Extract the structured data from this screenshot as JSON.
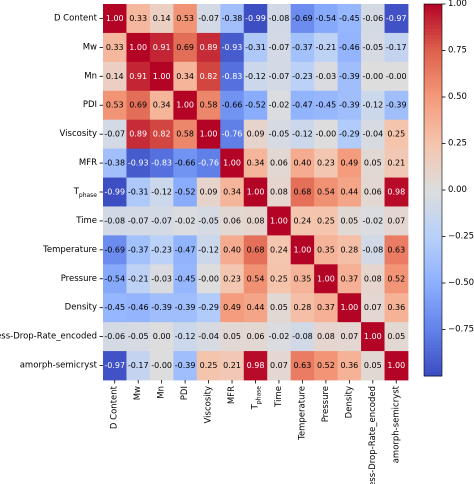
{
  "chart_data": {
    "type": "heatmap",
    "colormap": "coolwarm",
    "vmin": -1.0,
    "vmax": 1.0,
    "labels": [
      {
        "base": "D Content"
      },
      {
        "base": "Mw"
      },
      {
        "base": "Mn"
      },
      {
        "base": "PDI"
      },
      {
        "base": "Viscosity"
      },
      {
        "base": "MFR"
      },
      {
        "base": "T",
        "sub": "phase"
      },
      {
        "base": "Time"
      },
      {
        "base": "Temperature"
      },
      {
        "base": "Pressure"
      },
      {
        "base": "Density"
      },
      {
        "base": "Press-Drop-Rate_encoded"
      },
      {
        "base": "amorph-semicryst"
      }
    ],
    "values": [
      [
        "1.00",
        "0.33",
        "0.14",
        "0.53",
        "-0.07",
        "-0.38",
        "-0.99",
        "-0.08",
        "-0.69",
        "-0.54",
        "-0.45",
        "-0.06",
        "-0.97"
      ],
      [
        "0.33",
        "1.00",
        "0.91",
        "0.69",
        "0.89",
        "-0.93",
        "-0.31",
        "-0.07",
        "-0.37",
        "-0.21",
        "-0.46",
        "-0.05",
        "-0.17"
      ],
      [
        "0.14",
        "0.91",
        "1.00",
        "0.34",
        "0.82",
        "-0.83",
        "-0.12",
        "-0.07",
        "-0.23",
        "-0.03",
        "-0.39",
        "-0.00",
        "-0.00"
      ],
      [
        "0.53",
        "0.69",
        "0.34",
        "1.00",
        "0.58",
        "-0.66",
        "-0.52",
        "-0.02",
        "-0.47",
        "-0.45",
        "-0.39",
        "-0.12",
        "-0.39"
      ],
      [
        "-0.07",
        "0.89",
        "0.82",
        "0.58",
        "1.00",
        "-0.76",
        "0.09",
        "-0.05",
        "-0.12",
        "-0.00",
        "-0.29",
        "-0.04",
        "0.25"
      ],
      [
        "-0.38",
        "-0.93",
        "-0.83",
        "-0.66",
        "-0.76",
        "1.00",
        "0.34",
        "0.06",
        "0.40",
        "0.23",
        "0.49",
        "0.05",
        "0.21"
      ],
      [
        "-0.99",
        "-0.31",
        "-0.12",
        "-0.52",
        "0.09",
        "0.34",
        "1.00",
        "0.08",
        "0.68",
        "0.54",
        "0.44",
        "0.06",
        "0.98"
      ],
      [
        "-0.08",
        "-0.07",
        "-0.07",
        "-0.02",
        "-0.05",
        "0.06",
        "0.08",
        "1.00",
        "0.24",
        "0.25",
        "0.05",
        "-0.02",
        "0.07"
      ],
      [
        "-0.69",
        "-0.37",
        "-0.23",
        "-0.47",
        "-0.12",
        "0.40",
        "0.68",
        "0.24",
        "1.00",
        "0.35",
        "0.28",
        "-0.08",
        "0.63"
      ],
      [
        "-0.54",
        "-0.21",
        "-0.03",
        "-0.45",
        "-0.00",
        "0.23",
        "0.54",
        "0.25",
        "0.35",
        "1.00",
        "0.37",
        "0.08",
        "0.52"
      ],
      [
        "-0.45",
        "-0.46",
        "-0.39",
        "-0.39",
        "-0.29",
        "0.49",
        "0.44",
        "0.05",
        "0.28",
        "0.37",
        "1.00",
        "0.07",
        "0.36"
      ],
      [
        "-0.06",
        "-0.05",
        "0.00",
        "-0.12",
        "-0.04",
        "0.05",
        "0.06",
        "-0.02",
        "-0.08",
        "0.08",
        "0.07",
        "1.00",
        "0.05"
      ],
      [
        "-0.97",
        "-0.17",
        "-0.00",
        "-0.39",
        "0.25",
        "0.21",
        "0.98",
        "0.07",
        "0.63",
        "0.52",
        "0.36",
        "0.05",
        "1.00"
      ]
    ],
    "colorbar": {
      "ticks": [
        1.0,
        0.75,
        0.5,
        0.25,
        0.0,
        -0.25,
        -0.5,
        -0.75
      ],
      "tick_labels": [
        "1.00",
        "0.75",
        "0.50",
        "0.25",
        "0.00",
        "−0.25",
        "−0.50",
        "−0.75"
      ]
    },
    "title": "",
    "xlabel": "",
    "ylabel": ""
  }
}
